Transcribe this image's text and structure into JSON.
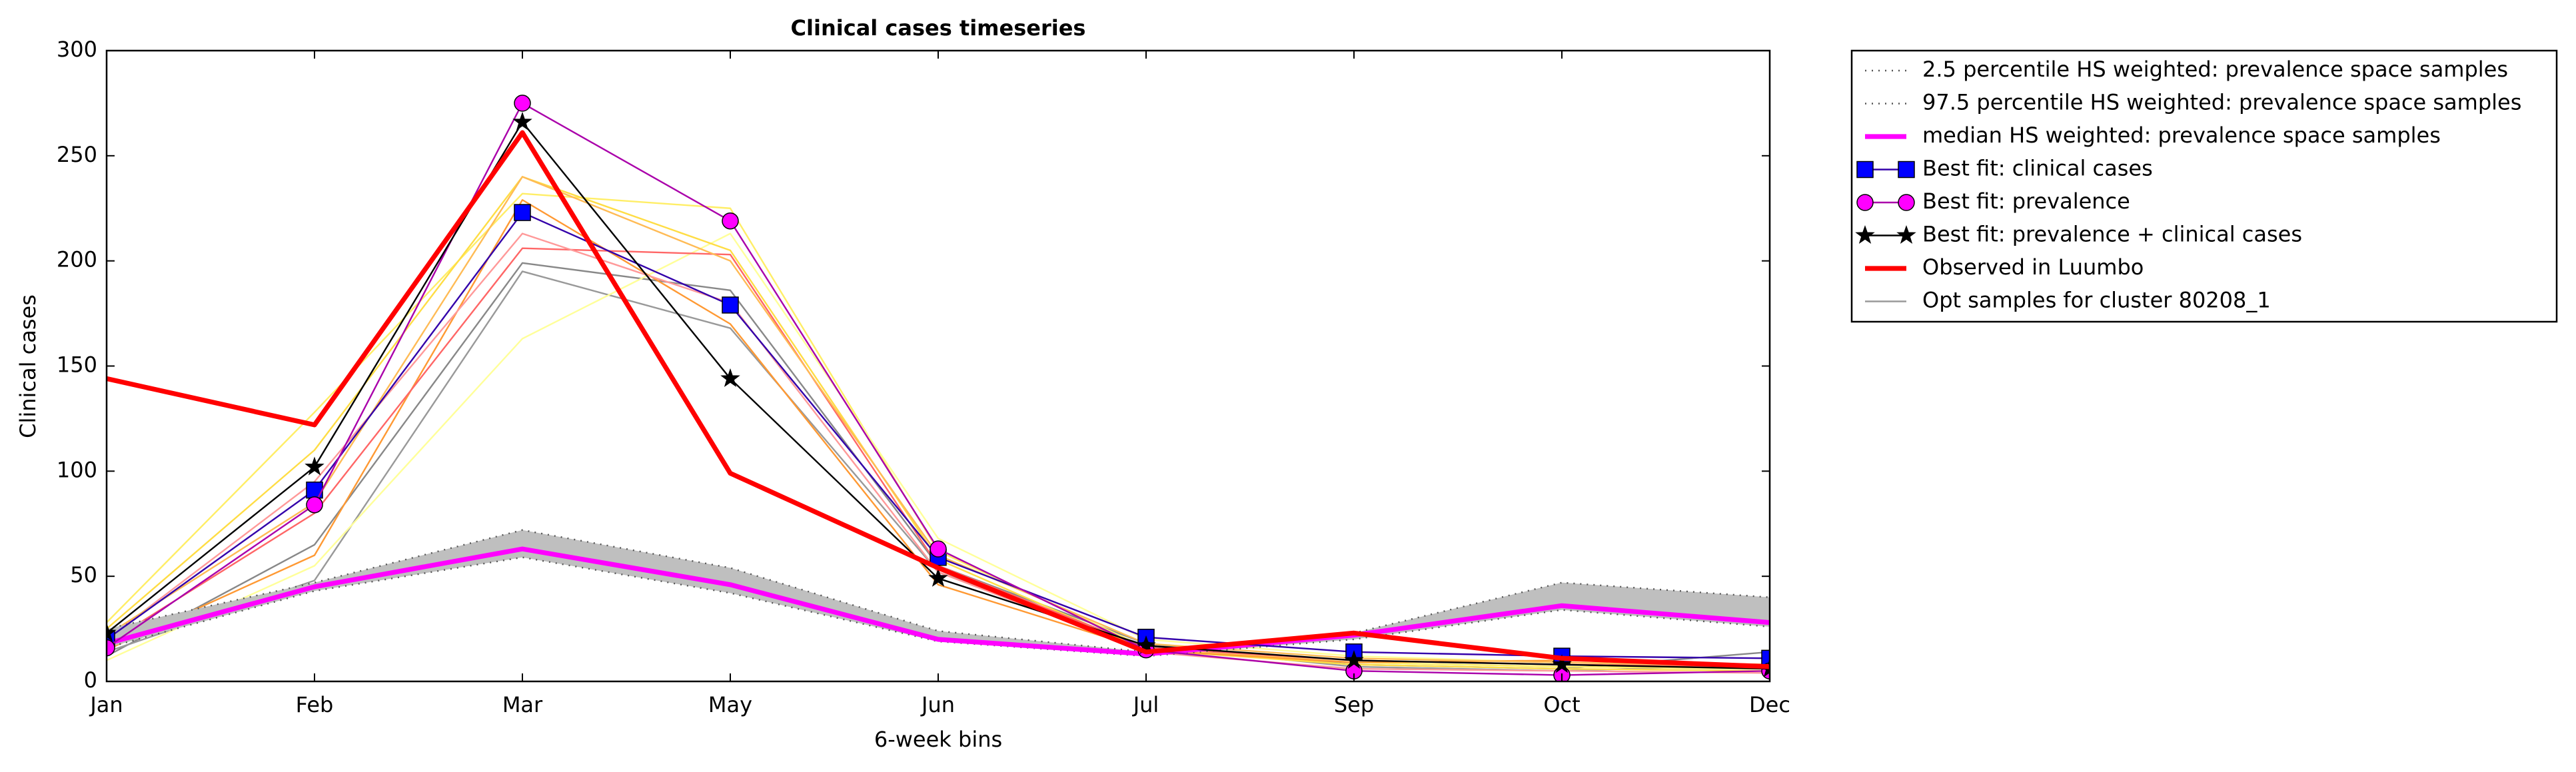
{
  "chart_data": {
    "type": "line",
    "title": "Clinical cases timeseries",
    "xlabel": "6-week bins",
    "ylabel": "Clinical cases",
    "categories": [
      "Jan",
      "Feb",
      "Mar",
      "May",
      "Jun",
      "Jul",
      "Sep",
      "Oct",
      "Dec"
    ],
    "ylim": [
      0,
      300
    ],
    "yticks": [
      0,
      50,
      100,
      150,
      200,
      250,
      300
    ],
    "grid": false,
    "legend": "outside upper right",
    "band": {
      "color": "#bfbfbf",
      "between": [
        0,
        1
      ]
    },
    "series": [
      {
        "name": "2.5 percentile HS weighted: prevalence space samples",
        "color": "#555555",
        "style": "dotted",
        "width": 1,
        "values": [
          16,
          43,
          59,
          42,
          19,
          12,
          20,
          34,
          26
        ]
      },
      {
        "name": "97.5 percentile HS weighted: prevalence space samples",
        "color": "#555555",
        "style": "dotted",
        "width": 1,
        "values": [
          25,
          47,
          72,
          54,
          24,
          14,
          23,
          47,
          40
        ]
      },
      {
        "name": "median HS weighted: prevalence space samples",
        "color": "#ff00ff",
        "style": "solid",
        "width": 3,
        "values": [
          18,
          45,
          63,
          46,
          20,
          13,
          22,
          36,
          28
        ]
      },
      {
        "name": "Best fit: clinical cases",
        "color": "#3300aa",
        "marker": "square",
        "marker_color": "#0000ff",
        "style": "solid",
        "width": 1,
        "values": [
          20,
          91,
          223,
          179,
          59,
          21,
          14,
          12,
          11
        ]
      },
      {
        "name": "Best fit: prevalence",
        "color": "#aa00aa",
        "marker": "circle",
        "marker_color": "#ff00ff",
        "style": "solid",
        "width": 1,
        "values": [
          16,
          84,
          275,
          219,
          63,
          15,
          5,
          3,
          5
        ]
      },
      {
        "name": "Best fit: prevalence + clinical cases",
        "color": "#000000",
        "marker": "star",
        "marker_color": "#000000",
        "style": "solid",
        "width": 1,
        "values": [
          23,
          102,
          266,
          144,
          49,
          17,
          10,
          8,
          6
        ]
      },
      {
        "name": "Observed in Luumbo",
        "color": "#ff0000",
        "style": "solid",
        "width": 3,
        "values": [
          144,
          122,
          261,
          99,
          54,
          14,
          23,
          11,
          7
        ]
      }
    ],
    "samples": {
      "name": "Opt samples for cluster 80208_1",
      "color": "#999999",
      "lines": [
        {
          "color": "#888888",
          "values": [
            12,
            65,
            199,
            186,
            55,
            18,
            8,
            6,
            14
          ]
        },
        {
          "color": "#999999",
          "values": [
            14,
            48,
            195,
            168,
            52,
            17,
            7,
            5,
            8
          ]
        },
        {
          "color": "#ffee66",
          "values": [
            28,
            128,
            232,
            225,
            62,
            16,
            9,
            7,
            6
          ]
        },
        {
          "color": "#ffff99",
          "values": [
            10,
            55,
            163,
            213,
            68,
            20,
            12,
            9,
            8
          ]
        },
        {
          "color": "#ffdd44",
          "values": [
            25,
            110,
            240,
            205,
            58,
            15,
            8,
            6,
            5
          ]
        },
        {
          "color": "#ff9933",
          "values": [
            15,
            60,
            229,
            170,
            46,
            15,
            9,
            10,
            8
          ]
        },
        {
          "color": "#ff6666",
          "values": [
            18,
            80,
            206,
            203,
            55,
            16,
            10,
            8,
            7
          ]
        },
        {
          "color": "#ff9999",
          "values": [
            20,
            95,
            213,
            180,
            52,
            14,
            6,
            5,
            4
          ]
        },
        {
          "color": "#ffbb55",
          "values": [
            22,
            85,
            240,
            200,
            60,
            18,
            11,
            9,
            7
          ]
        }
      ]
    }
  }
}
